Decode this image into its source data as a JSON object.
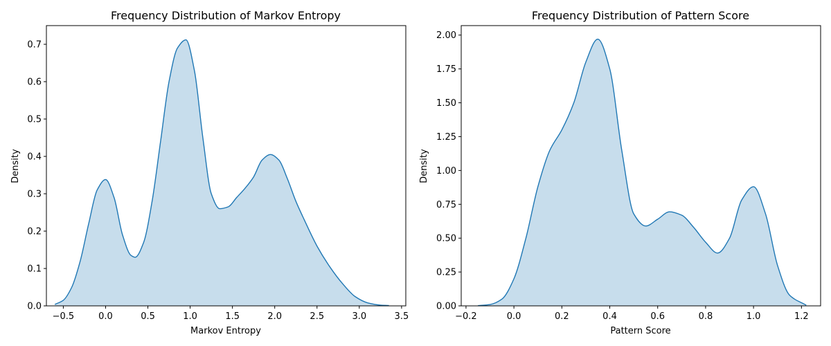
{
  "chart_data": [
    {
      "type": "area",
      "title": "Frequency Distribution of Markov Entropy",
      "xlabel": "Markov Entropy",
      "ylabel": "Density",
      "xlim": [
        -0.7,
        3.55
      ],
      "ylim": [
        0,
        0.75
      ],
      "xticks": [
        -0.5,
        0.0,
        0.5,
        1.0,
        1.5,
        2.0,
        2.5,
        3.0,
        3.5
      ],
      "xtick_labels": [
        "−0.5",
        "0.0",
        "0.5",
        "1.0",
        "1.5",
        "2.0",
        "2.5",
        "3.0",
        "3.5"
      ],
      "yticks": [
        0.0,
        0.1,
        0.2,
        0.3,
        0.4,
        0.5,
        0.6,
        0.7
      ],
      "ytick_labels": [
        "0.0",
        "0.1",
        "0.2",
        "0.3",
        "0.4",
        "0.5",
        "0.6",
        "0.7"
      ],
      "grid": false,
      "color": "#1f77b4",
      "series": [
        {
          "x": [
            -0.6,
            -0.5,
            -0.4,
            -0.3,
            -0.2,
            -0.1,
            0.0,
            0.1,
            0.2,
            0.3,
            0.35,
            0.45,
            0.55,
            0.65,
            0.75,
            0.85,
            0.95,
            1.05,
            1.15,
            1.25,
            1.35,
            1.45,
            1.55,
            1.65,
            1.75,
            1.85,
            1.95,
            2.05,
            2.15,
            2.25,
            2.35,
            2.5,
            2.65,
            2.8,
            2.95,
            3.1,
            3.25,
            3.35
          ],
          "y": [
            0.004,
            0.015,
            0.05,
            0.12,
            0.22,
            0.31,
            0.338,
            0.29,
            0.19,
            0.135,
            0.13,
            0.17,
            0.28,
            0.44,
            0.6,
            0.69,
            0.712,
            0.63,
            0.45,
            0.3,
            0.26,
            0.265,
            0.29,
            0.315,
            0.345,
            0.39,
            0.405,
            0.39,
            0.34,
            0.28,
            0.23,
            0.16,
            0.105,
            0.06,
            0.025,
            0.008,
            0.002,
            0.001
          ]
        }
      ]
    },
    {
      "type": "area",
      "title": "Frequency Distribution of Pattern Score",
      "xlabel": "Pattern Score",
      "ylabel": "Density",
      "xlim": [
        -0.22,
        1.28
      ],
      "ylim": [
        0,
        2.07
      ],
      "xticks": [
        -0.2,
        0.0,
        0.2,
        0.4,
        0.6,
        0.8,
        1.0,
        1.2
      ],
      "xtick_labels": [
        "−0.2",
        "0.0",
        "0.2",
        "0.4",
        "0.6",
        "0.8",
        "1.0",
        "1.2"
      ],
      "yticks": [
        0.0,
        0.25,
        0.5,
        0.75,
        1.0,
        1.25,
        1.5,
        1.75,
        2.0
      ],
      "ytick_labels": [
        "0.00",
        "0.25",
        "0.50",
        "0.75",
        "1.00",
        "1.25",
        "1.50",
        "1.75",
        "2.00"
      ],
      "grid": false,
      "color": "#1f77b4",
      "series": [
        {
          "x": [
            -0.15,
            -0.1,
            -0.05,
            0.0,
            0.05,
            0.1,
            0.15,
            0.2,
            0.25,
            0.3,
            0.35,
            0.4,
            0.45,
            0.5,
            0.55,
            0.6,
            0.65,
            0.7,
            0.75,
            0.8,
            0.85,
            0.9,
            0.95,
            1.0,
            1.05,
            1.1,
            1.15,
            1.22
          ],
          "y": [
            0.002,
            0.01,
            0.05,
            0.2,
            0.5,
            0.88,
            1.15,
            1.3,
            1.5,
            1.8,
            1.97,
            1.75,
            1.15,
            0.68,
            0.59,
            0.64,
            0.695,
            0.67,
            0.58,
            0.47,
            0.39,
            0.5,
            0.78,
            0.88,
            0.68,
            0.3,
            0.08,
            0.005
          ]
        }
      ]
    }
  ]
}
